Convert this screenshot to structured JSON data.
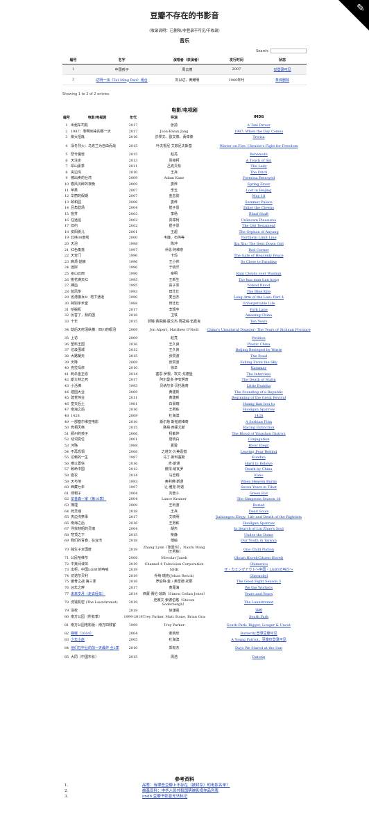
{
  "title": "豆瓣不存在的书影音",
  "note": "（收录说明：已删除/非登录不可见/不收录）",
  "corner_icon": "corner-ribbon-icon",
  "music": {
    "heading": "音乐",
    "search_label": "Search:",
    "headers": [
      "编号",
      "名字",
      "演唱者（表演者）",
      "发行时间",
      "状态"
    ],
    "rows": [
      {
        "no": "1",
        "name": "中国孩子",
        "artist": "周云蓬",
        "year": "2007",
        "status": "仅登录可见"
      },
      {
        "no": "2",
        "name": "达明一派（Tat Ming Pair）组合",
        "artist": "刘以达、黄耀明",
        "year": "1980年代",
        "status": "条目删除"
      }
    ],
    "showing": "Showing 1 to 2 of 2 entries"
  },
  "films": {
    "heading": "电影/电视剧",
    "headers": [
      "编号",
      "电影/电视剧",
      "年代",
      "导演",
      "IMDB"
    ],
    "rows": [
      [
        "1",
        "出租车司机",
        "2017",
        "张勋",
        "A Taxi Driver"
      ],
      [
        "2",
        "1987：黎明到来的那一天",
        "2017",
        "Joon-Hwan Jang",
        "1987: When the Day Comes"
      ],
      [
        "3",
        "柳大招胤",
        "2016",
        "許學文、歐文傑、黃偉傑",
        "Trivisa"
      ],
      [
        "4",
        "凛冬烈火：乌克兰为自由而战",
        "2015",
        "叶夫根尼·艾菲尼夫斯基",
        "Winter on Fire: Ukraine's Fight for Freedom"
      ],
      [
        "5",
        "悲兮魔兽",
        "2015",
        "赵亮",
        "Behemoth"
      ],
      [
        "6",
        "天注定",
        "2013",
        "贾樟柯",
        "A Touch of Sin"
      ],
      [
        "7",
        "昂山素季",
        "2011",
        "吕克贝松",
        "The Lady"
      ],
      [
        "8",
        "夹边沟",
        "2010",
        "王兵",
        "The Ditch"
      ],
      [
        "9",
        "被出卖的台湾",
        "2009",
        "Adam Kane",
        "Formosa Betrayed"
      ],
      [
        "10",
        "春风沉醉的夜晚",
        "2009",
        "娄烨",
        "Spring Fever"
      ],
      [
        "11",
        "苹果",
        "2007",
        "李玉",
        "Lost in Beijing"
      ],
      [
        "12",
        "华丽的假期",
        "2007",
        "金志勋",
        "May 18"
      ],
      [
        "13",
        "颐和园",
        "2006",
        "娄烨",
        "Summer Palace"
      ],
      [
        "14",
        "且角登场",
        "2004",
        "崔子恩",
        "Enter the Clowns"
      ],
      [
        "15",
        "盲井",
        "2003",
        "李杨",
        "Blind Shaft"
      ],
      [
        "16",
        "任逍遥",
        "2002",
        "贾樟柯",
        "Unknown Pleasures"
      ],
      [
        "17",
        "旧约",
        "2002",
        "崔子恩",
        "The Old Testament"
      ],
      [
        "18",
        "安阳婴儿",
        "2001",
        "王超",
        "The Orphan of Anyang"
      ],
      [
        "19",
        "北纬38度线",
        "2000",
        "韦廉、石伟等",
        "Northern Limit Line"
      ],
      [
        "20",
        "天浴",
        "1998",
        "陈冲",
        "Xiu Xiu: The Sent Down Girl"
      ],
      [
        "21",
        "红色角落",
        "1997",
        "乔恩·阿维奈",
        "Red Corner"
      ],
      [
        "22",
        "天安门",
        "1996",
        "卡玛",
        "The Gate of Heavenly Peace"
      ],
      [
        "23",
        "麻烦·姑娘",
        "1996",
        "王小帅",
        "So Close to Paradise"
      ],
      [
        "24",
        "迷岸",
        "1996",
        "于晓洋",
        ""
      ],
      [
        "25",
        "巫山云雨",
        "1996",
        "章明",
        "Rain Clouds over Wushan"
      ],
      [
        "26",
        "桃花满天红",
        "1995",
        "王新生",
        "Tao hua man tian hong"
      ],
      [
        "27",
        "裸血",
        "1995",
        "高子泽",
        "Naked Blood"
      ],
      [
        "28",
        "蓝风筝",
        "1993",
        "田壮壮",
        "The Blue Kite"
      ],
      [
        "29",
        "省港旗兵4：地下通道",
        "1990",
        "麦当杰",
        "Long Arm of the Law: Part 4"
      ],
      [
        "30",
        "特别手术室",
        "1988",
        "田壮壮",
        "Unforgettable Life"
      ],
      [
        "31",
        "挖掘机",
        "2017",
        "李辉亨",
        "Fork Lane"
      ],
      [
        "32",
        "厉害了，我的国",
        "2018",
        "卫铁",
        "Amazing China"
      ],
      [
        "33",
        "十年",
        "2015",
        "郭臻·黃飛鵬·歐文杰·周冠威·伍嘉良",
        "Ten Years"
      ],
      [
        "34",
        "劫后天府泪纵横：四川的眼泪",
        "2009",
        "Jon Alpert, Matthew O'Neill",
        "China's Unnatural Disaster: The Tears of Sichuan Province"
      ],
      [
        "35",
        "上访",
        "2009",
        "赵亮",
        "Petition"
      ],
      [
        "36",
        "塑料王国",
        "2016",
        "王久良",
        "Plastic China"
      ],
      [
        "37",
        "垃圾围城",
        "2012",
        "王久良",
        "Beijing Besieged by Waste"
      ],
      [
        "38",
        "大路朝天",
        "2015",
        "张赞波",
        "The Road"
      ],
      [
        "39",
        "天降",
        "2009",
        "张赞波",
        "Falling From the SKy"
      ],
      [
        "40",
        "克拉玛依",
        "2010",
        "徐辛",
        "Karamay"
      ],
      [
        "41",
        "刺杀金正恩",
        "2014",
        "塞思·罗根、埃文·戈德堡",
        "The Interview"
      ],
      [
        "42",
        "斯大林之死",
        "2017",
        "阿尔曼多·伊安努奇",
        "The Death of Stalin"
      ],
      [
        "43",
        "小活佛",
        "1993",
        "贝纳尔多·贝托鲁奇",
        "Little Buddha"
      ],
      [
        "44",
        "建国大业",
        "2009",
        "黄建新",
        "The Founding of a Republic"
      ],
      [
        "45",
        "建党伟业",
        "2011",
        "黄建新",
        "Beginning of the Great Revival"
      ],
      [
        "46",
        "皇天后土",
        "1981",
        "白景瑞",
        "Huang tian hou tu"
      ],
      [
        "47",
        "南海之后",
        "2016",
        "王男栋",
        "Hooligan Sparrow"
      ],
      [
        "48",
        "1428",
        "2009",
        "杜海滨",
        "1428"
      ],
      [
        "49",
        "一部塞尔维亚电影",
        "2010",
        "斯尔詹·斯帕谢维奇",
        "A Serbian Film"
      ],
      [
        "50",
        "竞相灭绝",
        "2015",
        "路易·西霍尤斯",
        "Racing Extinction"
      ],
      [
        "51",
        "颍州的孩子",
        "2006",
        "杨紫烨",
        "The Blood of Yingzhou District"
      ],
      [
        "52",
        "动词变位",
        "2001",
        "唐晓白",
        "Conjugation"
      ],
      [
        "53",
        "河殇",
        "1988",
        "夏骏",
        "River Elegy"
      ],
      [
        "54",
        "不再恐惧",
        "2008",
        "之塔欠·久美嘉措",
        "Leaving Fear Behind"
      ],
      [
        "55",
        "达赖的一生",
        "1997",
        "马丁·斯科塞斯",
        "Kundun"
      ],
      [
        "56",
        "难以置信",
        "2016",
        "肯·斯通",
        "Hard to Believe"
      ],
      [
        "57",
        "致命中国",
        "2012",
        "彼得·纳瓦罗",
        "Death by China"
      ],
      [
        "58",
        "嘉农",
        "2014",
        "马志翔",
        "Kano"
      ],
      [
        "59",
        "天与地",
        "1993",
        "奥利佛·斯通",
        "When Heaven Burns"
      ],
      [
        "60",
        "西藏七年",
        "1997",
        "让-雅克·阿诺",
        "Seven Years in Tibet"
      ],
      [
        "61",
        "绿帽子",
        "2004",
        "刘奋斗",
        "Green Hat"
      ],
      [
        "62",
        "辛普森一家（第16季）",
        "2004",
        "Lance Kramer",
        "The Simpsons Season 16"
      ],
      [
        "63",
        "掩埋",
        "2009",
        "王利波",
        "Buried"
      ],
      [
        "64",
        "死灵魂",
        "2018",
        "王兵",
        "Dead Souls"
      ],
      [
        "65",
        "夹边沟祭事",
        "2017",
        "艾晓明",
        "Jiabiangou Elegy: Life and Death of the Rightists"
      ],
      [
        "66",
        "南海之后",
        "2016",
        "王男栋",
        "Hooligan Sparrow"
      ],
      [
        "67",
        "寻找林昭的灵魂",
        "2004",
        "胡杰",
        "In Search of Lin Zhao's Soul"
      ],
      [
        "68",
        "穹顶之下",
        "2015",
        "柴静",
        "Under the Dome"
      ],
      [
        "69",
        "我们的青春，在台湾",
        "2018",
        "傅榆",
        "Our Youth in Taiwan"
      ],
      [
        "70",
        "独生子女国度",
        "2019",
        "Zhang Lynn（张嘉玲），Nanfu Wang（王男栋）",
        "One Child Nation"
      ],
      [
        "71",
        "公民哈维尔",
        "2008",
        "Miroslav Janek",
        "Obcan Havel(Citizen Havel)"
      ],
      [
        "72",
        "中美间谍体",
        "2019",
        "Channel 4 Television Corporation",
        "Chimerica"
      ],
      [
        "73",
        "出柜，中国LGBT的呐喊",
        "2019",
        "NHK",
        "ザ・カミングアウト〜中国・LGBTの叫び〜"
      ],
      [
        "74",
        "切诺尔贝利",
        "2019",
        "乔纳·瑞克(Johan Renck)",
        "Chernobyl"
      ],
      [
        "75",
        "傲骨之战 第三季",
        "2018",
        "罗伯特·金 / 弗雷德·托耶",
        "The Good Fight Season 3"
      ],
      [
        "76",
        "凶年之畔",
        "2017",
        "黄尾海",
        "We the Workers"
      ],
      [
        "77",
        "未来岁月（走去经年）",
        "2014",
        "西蒙·赛伦·琼斯（Simon Cellan Jones）",
        "Years and Years"
      ],
      [
        "78",
        "洗钱机密 (The Laundromat)",
        "2019",
        "史蒂文·索德伯格（Steven Soderbergh）",
        "The Laundromat"
      ],
      [
        "79",
        "浴校",
        "2019",
        "徐谦强",
        "浴校"
      ],
      [
        "80",
        "南方公园（所有季）",
        "1999-2019",
        "Trey Parker, Matt Stone, Brian Graden",
        "South Park"
      ],
      [
        "81",
        "南方公园电影版：南方四贱客",
        "1999",
        "Trey Parker",
        "South Park: Bigger, Longer & Uncut"
      ],
      [
        "82",
        "蝴蝶（2004）",
        "2004",
        "麦婉欣",
        "Butterfly,登录豆瓣可见"
      ],
      [
        "83",
        "少年小赵",
        "2005",
        "杜海滨",
        "A Young Patriot，豆瓣仅登录可见"
      ],
      [
        "84",
        "他们在毕业的前一天爆炸 全2季",
        "2010",
        "郑有杰",
        "Days We Stared at the Sun"
      ],
      [
        "85",
        "大同（中国市长）",
        "2015",
        "周浩",
        "Datong"
      ]
    ]
  },
  "refs": {
    "heading": "参考资料",
    "items": [
      {
        "num": "1.",
        "text": "品葱：有哪些豆瓣上不存在（被封杀）的电影名单？"
      },
      {
        "num": "2.",
        "text": "维基百科：中华人民共和国禁映影视作品列表"
      },
      {
        "num": "3.",
        "text": "imdb.豆瓣书影音无法标记"
      }
    ]
  }
}
